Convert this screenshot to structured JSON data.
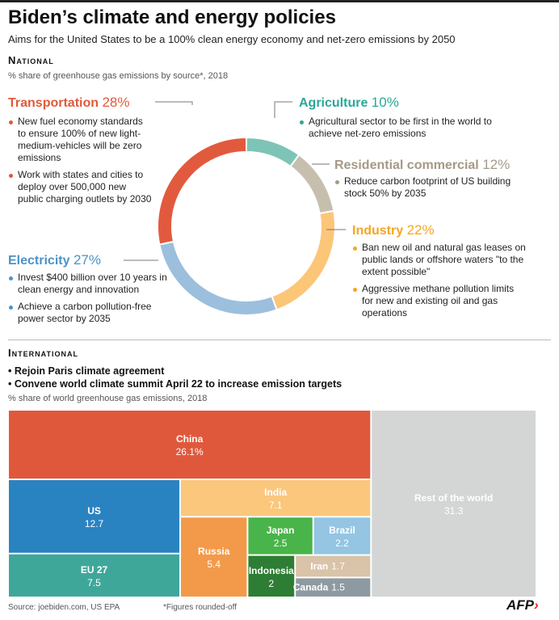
{
  "title": "Biden’s climate and energy policies",
  "subtitle": "Aims for the United States to be a 100% clean energy economy and net-zero emissions by 2050",
  "national": {
    "heading": "National",
    "note": "% share of greenhouse gas emissions by source*, 2018"
  },
  "international": {
    "heading": "International",
    "bullets": [
      "Rejoin Paris climate agreement",
      "Convene world climate summit April 22 to increase emission targets"
    ],
    "note": "% share of world greenhouse gas emissions, 2018"
  },
  "sectors": {
    "transportation": {
      "name": "Transportation",
      "pct": "28%",
      "color": "#e05a3a",
      "bullets": [
        "New fuel economy standards to ensure 100% of new light-medium-vehicles will be zero emissions",
        "Work with states and cities to deploy over 500,000 new public charging outlets by 2030"
      ]
    },
    "agriculture": {
      "name": "Agriculture",
      "pct": "10%",
      "color": "#2aa896",
      "bullets": [
        "Agricultural sector to be first in the world to achieve net-zero emissions"
      ]
    },
    "residential": {
      "name": "Residential commercial",
      "pct": "12%",
      "color": "#a49a86",
      "bullets": [
        "Reduce carbon footprint of US building stock 50% by 2035"
      ]
    },
    "industry": {
      "name": "Industry",
      "pct": "22%",
      "color": "#f5a623",
      "bullets": [
        "Ban new oil and natural gas leases on public lands or offshore waters \"to the extent possible\"",
        "Aggressive methane pollution limits for new and existing oil and gas operations"
      ]
    },
    "electricity": {
      "name": "Electricity",
      "pct": "27%",
      "color": "#4b93c7",
      "bullets": [
        "Invest $400 billion over 10 years in clean energy and innovation",
        "Achieve a carbon pollution-free power sector by 2035"
      ]
    }
  },
  "footer": {
    "source": "Source: joebiden.com, US EPA",
    "footnote": "*Figures rounded-off",
    "logo": "AFP"
  },
  "chart_data": [
    {
      "type": "pie",
      "title": "",
      "labels": [
        "Agriculture",
        "Residential commercial",
        "Industry",
        "Electricity",
        "Transportation"
      ],
      "values": [
        10,
        12,
        22,
        27,
        28
      ],
      "colors": [
        "#7dc4b6",
        "#c7bfae",
        "#fcc679",
        "#9cbfdd",
        "#e25a3e"
      ],
      "donut": true
    },
    {
      "type": "treemap",
      "title": "",
      "labels": [
        "China",
        "US",
        "EU 27",
        "India",
        "Russia",
        "Japan",
        "Brazil",
        "Indonesia",
        "Iran",
        "Canada",
        "Rest of the world"
      ],
      "value_labels": [
        "26.1%",
        "12.7",
        "7.5",
        "7.1",
        "5.4",
        "2.5",
        "2.2",
        "2",
        "1.7",
        "1.5",
        "31.3"
      ],
      "values": [
        26.1,
        12.7,
        7.5,
        7.1,
        5.4,
        2.5,
        2.2,
        2,
        1.7,
        1.5,
        31.3
      ],
      "colors": [
        "#e0583c",
        "#2a83c1",
        "#3fa79a",
        "#fbc77d",
        "#f39a4a",
        "#49b449",
        "#94c5e2",
        "#2e7d34",
        "#d9c3a9",
        "#8e9aa1",
        "#d4d5d5"
      ],
      "text_colors": [
        "#ffffff",
        "#ffffff",
        "#ffffff",
        "#ffffff",
        "#ffffff",
        "#ffffff",
        "#ffffff",
        "#ffffff",
        "#ffffff",
        "#ffffff",
        "#ffffff"
      ]
    }
  ]
}
